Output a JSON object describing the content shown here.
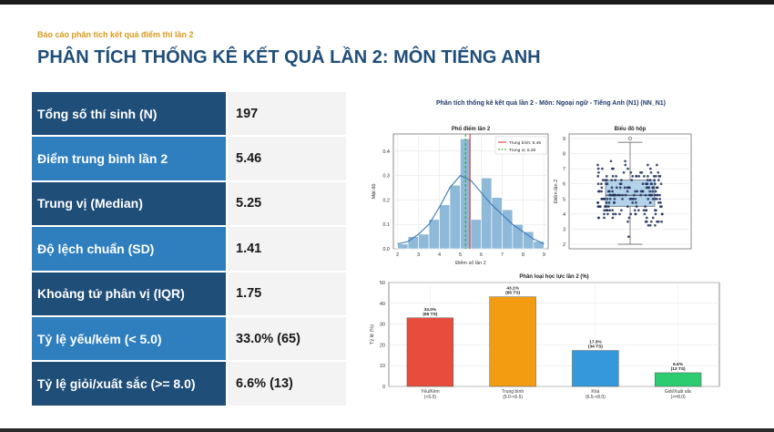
{
  "report": {
    "subtitle": "Báo cáo phân tích kết quả điểm thi lần 2",
    "title": "PHÂN TÍCH THỐNG KÊ KẾT QUẢ LẦN 2: MÔN TIẾNG ANH"
  },
  "stats": [
    {
      "label": "Tổng số thí sinh (N)",
      "value": "197"
    },
    {
      "label": "Điểm trung bình lần 2",
      "value": "5.46"
    },
    {
      "label": "Trung vị (Median)",
      "value": "5.25"
    },
    {
      "label": "Độ lệch chuẩn (SD)",
      "value": "1.41"
    },
    {
      "label": "Khoảng tứ phân vị (IQR)",
      "value": "1.75"
    },
    {
      "label": "Tỷ lệ yếu/kém (< 5.0)",
      "value": "33.0% (65)"
    },
    {
      "label": "Tỷ lệ giỏi/xuất sắc (>= 8.0)",
      "value": "6.6% (13)"
    }
  ],
  "figure": {
    "suptitle": "Phân tích thống kê kết quả lần 2 - Môn: Ngoại ngữ - Tiếng Anh (N1) (NN_N1)"
  },
  "chart_data": [
    {
      "type": "bar",
      "subtype": "histogram-with-kde",
      "title": "Phổ điểm lần 2",
      "xlabel": "Điểm số lần 2",
      "ylabel": "Mật độ",
      "xlim": [
        1.8,
        9.2
      ],
      "ylim": [
        0,
        0.47
      ],
      "xticks": [
        "2",
        "3",
        "4",
        "5",
        "6",
        "7",
        "8",
        "9"
      ],
      "yticks": [
        "0.0",
        "0.1",
        "0.2",
        "0.3",
        "0.4"
      ],
      "bin_edges": [
        2,
        2.5,
        3,
        3.5,
        4,
        4.5,
        5,
        5.5,
        6,
        6.5,
        7,
        7.5,
        8,
        8.5,
        9
      ],
      "density": [
        0.02,
        0.05,
        0.06,
        0.12,
        0.18,
        0.26,
        0.45,
        0.12,
        0.29,
        0.21,
        0.16,
        0.1,
        0.07,
        0.03
      ],
      "kde": {
        "x": [
          2,
          2.5,
          3,
          3.5,
          4,
          4.5,
          5,
          5.5,
          6,
          6.5,
          7,
          7.5,
          8,
          8.5,
          9
        ],
        "y": [
          0.02,
          0.03,
          0.06,
          0.1,
          0.17,
          0.25,
          0.3,
          0.28,
          0.23,
          0.18,
          0.14,
          0.1,
          0.07,
          0.04,
          0.02
        ]
      },
      "mean": 5.46,
      "median": 5.25,
      "legend": [
        {
          "name": "Trung bình: 5.46",
          "color": "#d62728",
          "style": "solid"
        },
        {
          "name": "Trung vị: 5.25",
          "color": "#2ca02c",
          "style": "dashed"
        }
      ],
      "legend_position": "top-right",
      "bar_color": "#8fb9d9",
      "kde_color": "#3a78b5",
      "grid": true
    },
    {
      "type": "scatter",
      "subtype": "boxplot-with-strip",
      "title": "Biểu đồ hộp",
      "ylabel": "Điểm lần 2",
      "ylim": [
        1.7,
        9.3
      ],
      "yticks": [
        "2",
        "3",
        "4",
        "5",
        "6",
        "7",
        "8",
        "9"
      ],
      "box": {
        "min": 2,
        "q1": 4.5,
        "median": 5.25,
        "q3": 6.25,
        "max": 8.75
      },
      "outliers": [
        9
      ],
      "point_color": "#1f2d5a",
      "box_color": "#a7cbe6",
      "grid": true
    },
    {
      "type": "bar",
      "title": "Phân loại học lực lần 2 (%)",
      "ylabel": "Tỷ lệ (%)",
      "ylim": [
        0,
        50
      ],
      "yticks": [
        "0",
        "10",
        "20",
        "30",
        "40",
        "50"
      ],
      "categories": [
        {
          "name": "Yếu/Kém",
          "range": "(<5.0)"
        },
        {
          "name": "Trung bình",
          "range": "(5.0-<6.5)"
        },
        {
          "name": "Khá",
          "range": "(6.5-<8.0)"
        },
        {
          "name": "Giỏi/Xuất sắc",
          "range": "(>=8.0)"
        }
      ],
      "values": [
        33.0,
        43.1,
        17.3,
        6.6
      ],
      "labels": [
        "33.0%",
        "43.1%",
        "17.3%",
        "6.6%"
      ],
      "counts": [
        "(65 TS)",
        "(85 TS)",
        "(34 TS)",
        "(13 TS)"
      ],
      "colors": [
        "#e74c3c",
        "#f39c12",
        "#3498db",
        "#2ecc71"
      ],
      "grid": true
    }
  ]
}
